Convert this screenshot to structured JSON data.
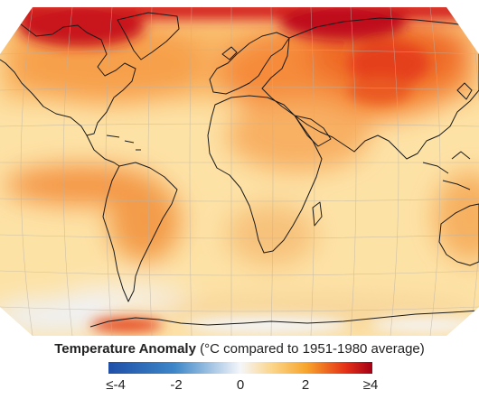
{
  "legend": {
    "title_bold": "Temperature Anomaly",
    "title_rest": " (°C compared to 1951-1980 average)",
    "ticks": [
      "≤-4",
      "-2",
      "0",
      "2",
      "≥4"
    ],
    "colors": [
      "#1f4fa8",
      "#3d86c8",
      "#f5f6fa",
      "#f7a52c",
      "#e53017",
      "#a30016"
    ]
  },
  "map": {
    "description_colors": {
      "land_outline": "#1a1a1a",
      "graticule": "#b9b2a8",
      "hot": "#c4101b",
      "warm": "#f6a24a",
      "neutral": "#fde6b0",
      "cool": "#e9eef8"
    }
  }
}
